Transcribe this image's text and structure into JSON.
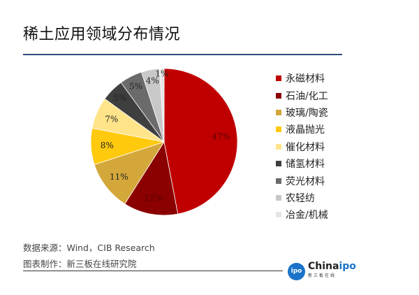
{
  "chart_data": {
    "type": "pie",
    "title": "稀土应用领域分布情况",
    "categories": [
      "永磁材料",
      "石油/化工",
      "玻璃/陶瓷",
      "液晶抛光",
      "催化材料",
      "储氢材料",
      "荧光材料",
      "农轻纺",
      "冶金/机械"
    ],
    "values": [
      47,
      12,
      11,
      8,
      7,
      5,
      5,
      4,
      1
    ],
    "labels": [
      "47%",
      "12%",
      "11%",
      "8%",
      "7%",
      "5%",
      "5%",
      "4%",
      "1%"
    ],
    "colors": [
      "#c00000",
      "#8b0000",
      "#d4a73a",
      "#ffc90e",
      "#ffe48a",
      "#3f3f3f",
      "#6b6b6b",
      "#c8c8c8",
      "#e6e6e6"
    ],
    "label_colors": [
      "#5a0000",
      "#5a0000",
      "#222",
      "#222",
      "#222",
      "#222",
      "#222",
      "#222",
      "#222"
    ],
    "legend_position": "right",
    "start": "top-clockwise"
  },
  "footer": {
    "source": "数据来源：Wind，CIB Research",
    "maker": "图表制作：新三板在线研究院"
  },
  "logo": {
    "badge": "ipo",
    "name_a": "China",
    "name_b": "ipo",
    "sub": "新三板在线"
  }
}
